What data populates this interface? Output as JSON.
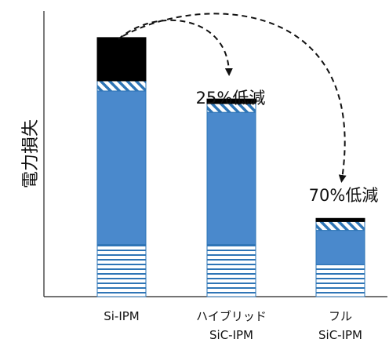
{
  "chart_data": {
    "type": "bar",
    "stacked": true,
    "title": "",
    "xlabel": "",
    "ylabel": "電力損失",
    "ylim": [
      0,
      100
    ],
    "y_ticks_labeled": false,
    "grid": false,
    "legend": "none",
    "categories": [
      {
        "lines": [
          "Si-IPM"
        ]
      },
      {
        "lines": [
          "ハイブリッド",
          "SiC-IPM"
        ]
      },
      {
        "lines": [
          "フル",
          "SiC-IPM"
        ]
      }
    ],
    "segment_order": [
      "horizontal-striped (bottom)",
      "solid blue",
      "diagonal-hatched",
      "solid black (top)"
    ],
    "series": [
      {
        "style": "hstripe",
        "color": "#2e75b6",
        "values": [
          19.5,
          19.5,
          12.0
        ]
      },
      {
        "style": "solid",
        "color": "#4a89cc",
        "values": [
          57.5,
          49.5,
          12.8
        ]
      },
      {
        "style": "diag",
        "color": "#2e75b6",
        "values": [
          3.8,
          3.3,
          3.3
        ]
      },
      {
        "style": "solid",
        "color": "#000000",
        "values": [
          16.2,
          1.7,
          1.2
        ]
      }
    ],
    "annotations": [
      {
        "text": "25%低減",
        "target_category": 1,
        "arrow_from_category": 0
      },
      {
        "text": "70%低減",
        "target_category": 2,
        "arrow_from_category": 0
      }
    ]
  }
}
